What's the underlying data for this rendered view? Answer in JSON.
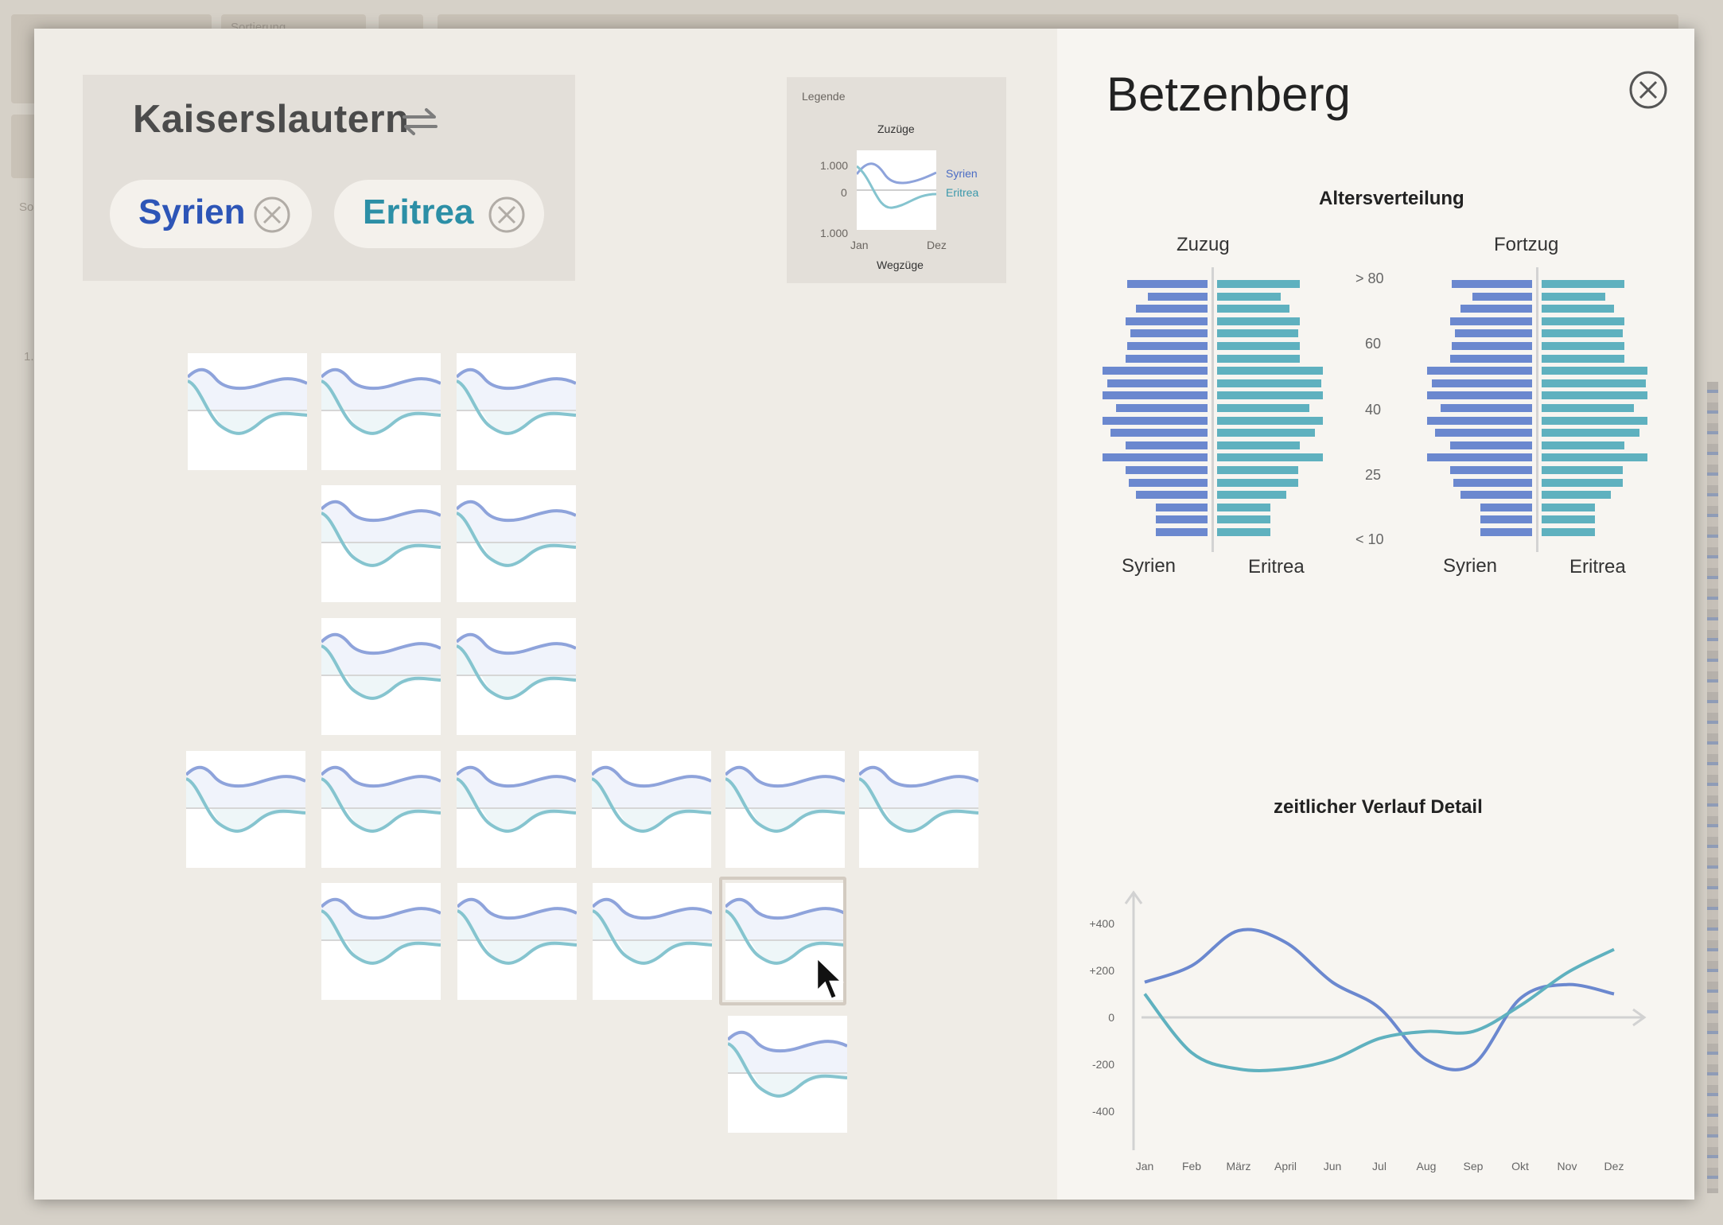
{
  "background": {
    "labels": [
      "Sortierung",
      "So",
      "1."
    ]
  },
  "selection": {
    "city": "Kaiserslautern",
    "swap_icon": "swap-arrows-icon",
    "chips": [
      {
        "label": "Syrien",
        "color": "#2d55b7"
      },
      {
        "label": "Eritrea",
        "color": "#2c8fa6"
      }
    ]
  },
  "legend": {
    "title": "Legende",
    "top_label": "Zuzüge",
    "bottom_label": "Wegzüge",
    "ticks": [
      "1.000",
      "0",
      "1.000"
    ],
    "x_start": "Jan",
    "x_end": "Dez",
    "series": [
      "Syrien",
      "Eritrea"
    ]
  },
  "colors": {
    "syrien": "#6b88cf",
    "eritrea": "#5fb1bf",
    "syrien_tile": "#8ea3db",
    "eritrea_tile": "#85c4cf"
  },
  "detail": {
    "title": "Betzenberg",
    "age_section_title": "Altersverteilung",
    "zuzug_title": "Zuzug",
    "fortzug_title": "Fortzug",
    "age_labels": [
      "> 80",
      "60",
      "40",
      "25",
      "< 10"
    ],
    "foot_left": "Syrien",
    "foot_right": "Eritrea",
    "time_section_title": "zeitlicher Verlauf Detail"
  },
  "chart_data": [
    {
      "type": "bar",
      "title": "Zuzug",
      "orientation": "horizontal-pyramid",
      "series": [
        {
          "name": "Syrien",
          "values": [
            0.7,
            0.52,
            0.62,
            0.71,
            0.67,
            0.7,
            0.71,
            0.91,
            0.87,
            0.91,
            0.79,
            0.91,
            0.84,
            0.71,
            0.91,
            0.71,
            0.68,
            0.62,
            0.45,
            0.45,
            0.45
          ]
        },
        {
          "name": "Eritrea",
          "values": [
            0.72,
            0.55,
            0.63,
            0.72,
            0.7,
            0.72,
            0.72,
            0.92,
            0.9,
            0.92,
            0.8,
            0.92,
            0.85,
            0.72,
            0.92,
            0.7,
            0.7,
            0.6,
            0.46,
            0.46,
            0.46
          ]
        }
      ]
    },
    {
      "type": "bar",
      "title": "Fortzug",
      "orientation": "horizontal-pyramid",
      "series": [
        {
          "name": "Syrien",
          "values": [
            0.7,
            0.52,
            0.62,
            0.71,
            0.67,
            0.7,
            0.71,
            0.91,
            0.87,
            0.91,
            0.79,
            0.91,
            0.84,
            0.71,
            0.91,
            0.71,
            0.68,
            0.62,
            0.45,
            0.45,
            0.45
          ]
        },
        {
          "name": "Eritrea",
          "values": [
            0.72,
            0.55,
            0.63,
            0.72,
            0.7,
            0.72,
            0.72,
            0.92,
            0.9,
            0.92,
            0.8,
            0.92,
            0.85,
            0.72,
            0.92,
            0.7,
            0.7,
            0.6,
            0.46,
            0.46,
            0.46
          ]
        }
      ]
    },
    {
      "type": "line",
      "title": "zeitlicher Verlauf Detail",
      "x": [
        "Jan",
        "Feb",
        "März",
        "April",
        "Jun",
        "Jul",
        "Aug",
        "Sep",
        "Okt",
        "Nov",
        "Dez"
      ],
      "y_ticks": [
        "+400",
        "+200",
        "0",
        "-200",
        "-400"
      ],
      "ylim": [
        -480,
        480
      ],
      "series": [
        {
          "name": "Syrien",
          "values": [
            150,
            220,
            370,
            320,
            150,
            40,
            -180,
            -200,
            80,
            140,
            100
          ]
        },
        {
          "name": "Eritrea",
          "values": [
            100,
            -150,
            -220,
            -220,
            -180,
            -90,
            -60,
            -60,
            50,
            190,
            290
          ]
        }
      ]
    }
  ]
}
